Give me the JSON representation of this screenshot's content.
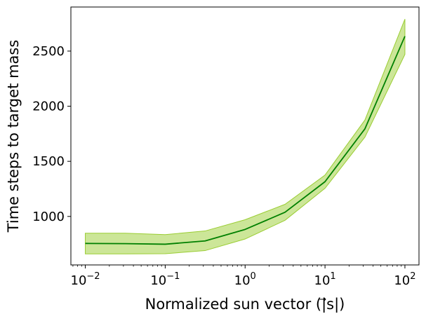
{
  "chart_data": {
    "type": "line",
    "title": "",
    "xlabel": "Normalized sun vector (|⃗s|)",
    "ylabel": "Time steps to target mass",
    "x_scale": "log",
    "xlim": [
      0.0066,
      150
    ],
    "ylim": [
      560,
      2900
    ],
    "x_ticks": [
      {
        "value": 0.01,
        "base": "10",
        "exp": "−2"
      },
      {
        "value": 0.1,
        "base": "10",
        "exp": "−1"
      },
      {
        "value": 1,
        "base": "10",
        "exp": "0"
      },
      {
        "value": 10,
        "base": "10",
        "exp": "1"
      },
      {
        "value": 100,
        "base": "10",
        "exp": "2"
      }
    ],
    "y_ticks": [
      1000,
      1500,
      2000,
      2500
    ],
    "grid": false,
    "legend": "none",
    "series": [
      {
        "color": "#008000",
        "band_color": "#9acd32",
        "x": [
          0.01,
          0.0316,
          0.1,
          0.316,
          1,
          3.16,
          10,
          31.6,
          100
        ],
        "values": [
          755,
          753,
          748,
          778,
          882,
          1038,
          1315,
          1795,
          2635
        ],
        "lower": [
          660,
          660,
          662,
          690,
          795,
          965,
          1255,
          1720,
          2470
        ],
        "upper": [
          848,
          848,
          835,
          868,
          970,
          1110,
          1375,
          1875,
          2790
        ]
      }
    ]
  }
}
